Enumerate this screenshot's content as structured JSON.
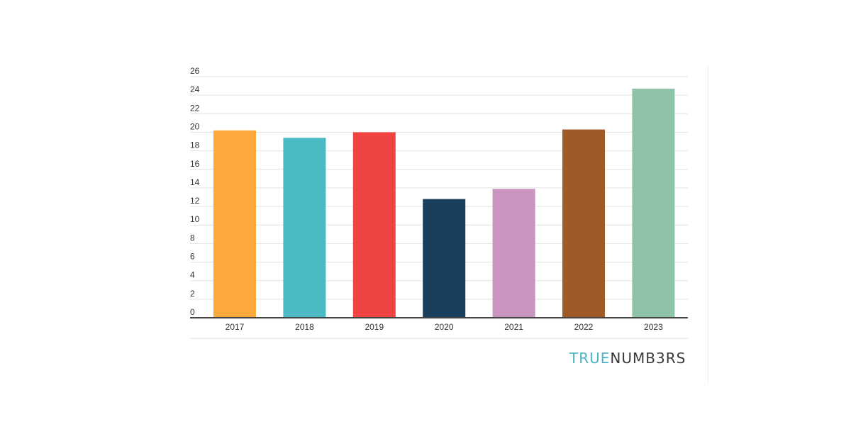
{
  "chart_data": {
    "type": "bar",
    "categories": [
      "2017",
      "2018",
      "2019",
      "2020",
      "2021",
      "2022",
      "2023"
    ],
    "values": [
      20.2,
      19.4,
      20.0,
      12.8,
      13.9,
      20.3,
      24.7
    ],
    "colors": [
      "#fca83a",
      "#4abac4",
      "#ef4441",
      "#193f5c",
      "#c995c0",
      "#a05a28",
      "#8ec3a7"
    ],
    "yticks": [
      "0",
      "2",
      "4",
      "6",
      "8",
      "10",
      "12",
      "14",
      "16",
      "18",
      "20",
      "22",
      "24",
      "26"
    ],
    "ylim": [
      0,
      26
    ],
    "title": "",
    "xlabel": "",
    "ylabel": "",
    "grid": true
  },
  "brand": {
    "part1": "TRUE",
    "part2": "NUMB3RS"
  }
}
